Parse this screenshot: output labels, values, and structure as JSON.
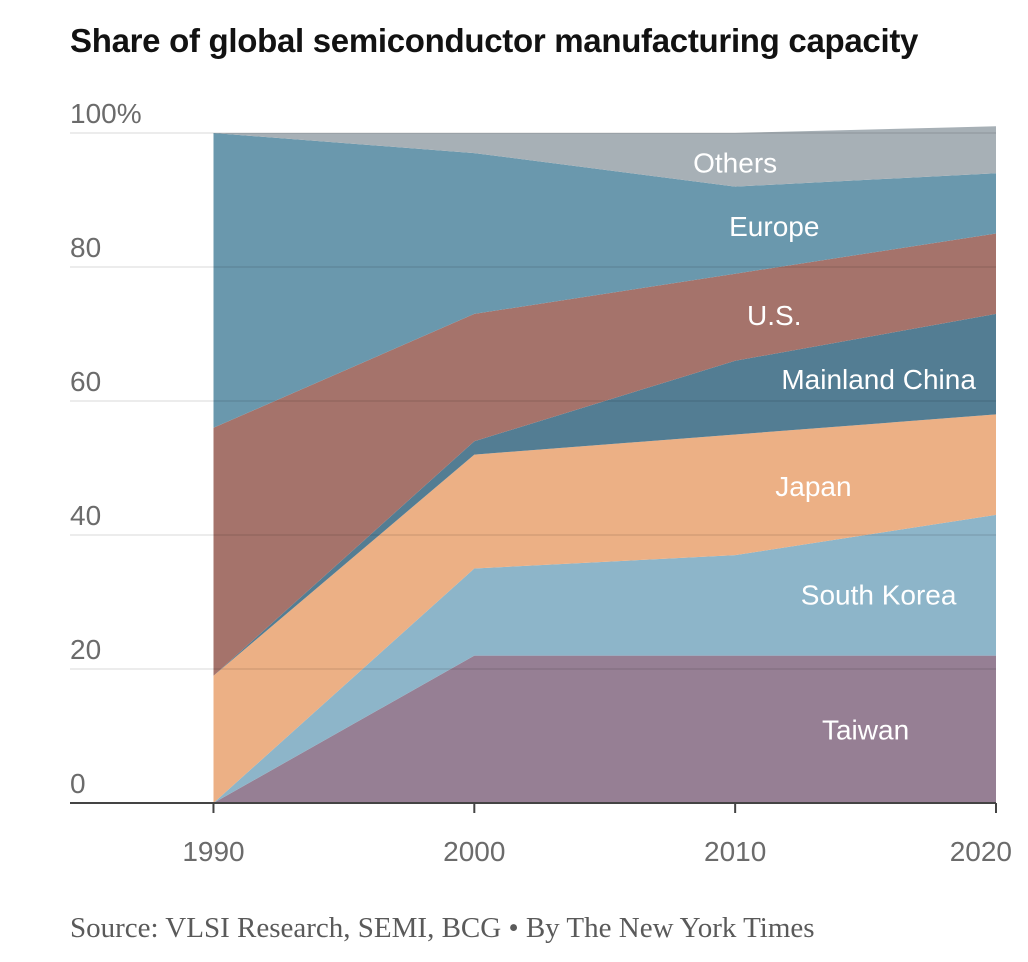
{
  "title": "Share of global semiconductor manufacturing capacity",
  "source": "Source: VLSI Research, SEMI, BCG • By The New York Times",
  "chart_data": {
    "type": "area",
    "stacked": true,
    "title": "Share of global semiconductor manufacturing capacity",
    "xlabel": "",
    "ylabel": "",
    "x": [
      1990,
      2000,
      2010,
      2020
    ],
    "xticks": [
      "1990",
      "2000",
      "2010",
      "2020"
    ],
    "xlim": [
      1984.5,
      2020
    ],
    "ylim": [
      0,
      100
    ],
    "yticks": [
      0,
      20,
      40,
      60,
      80,
      100
    ],
    "ytick_labels": [
      "0",
      "20",
      "40",
      "60",
      "80",
      "100%"
    ],
    "grid": true,
    "series": [
      {
        "name": "Taiwan",
        "label": "Taiwan",
        "color": "#967f94",
        "values": [
          0,
          22,
          22,
          22
        ]
      },
      {
        "name": "South Korea",
        "label": "South Korea",
        "color": "#8db5c9",
        "values": [
          0,
          13,
          15,
          21
        ]
      },
      {
        "name": "Japan",
        "label": "Japan",
        "color": "#ecb085",
        "values": [
          19,
          17,
          18,
          15
        ]
      },
      {
        "name": "Mainland China",
        "label": "Mainland China",
        "color": "#537d93",
        "values": [
          0,
          2,
          11,
          15
        ]
      },
      {
        "name": "U.S.",
        "label": "U.S.",
        "color": "#a5736b",
        "values": [
          37,
          19,
          13,
          12
        ]
      },
      {
        "name": "Europe",
        "label": "Europe",
        "color": "#6a98ad",
        "values": [
          44,
          24,
          13,
          9
        ]
      },
      {
        "name": "Others",
        "label": "Others",
        "color": "#a7b0b6",
        "values": [
          0,
          3,
          8,
          7
        ]
      }
    ]
  }
}
